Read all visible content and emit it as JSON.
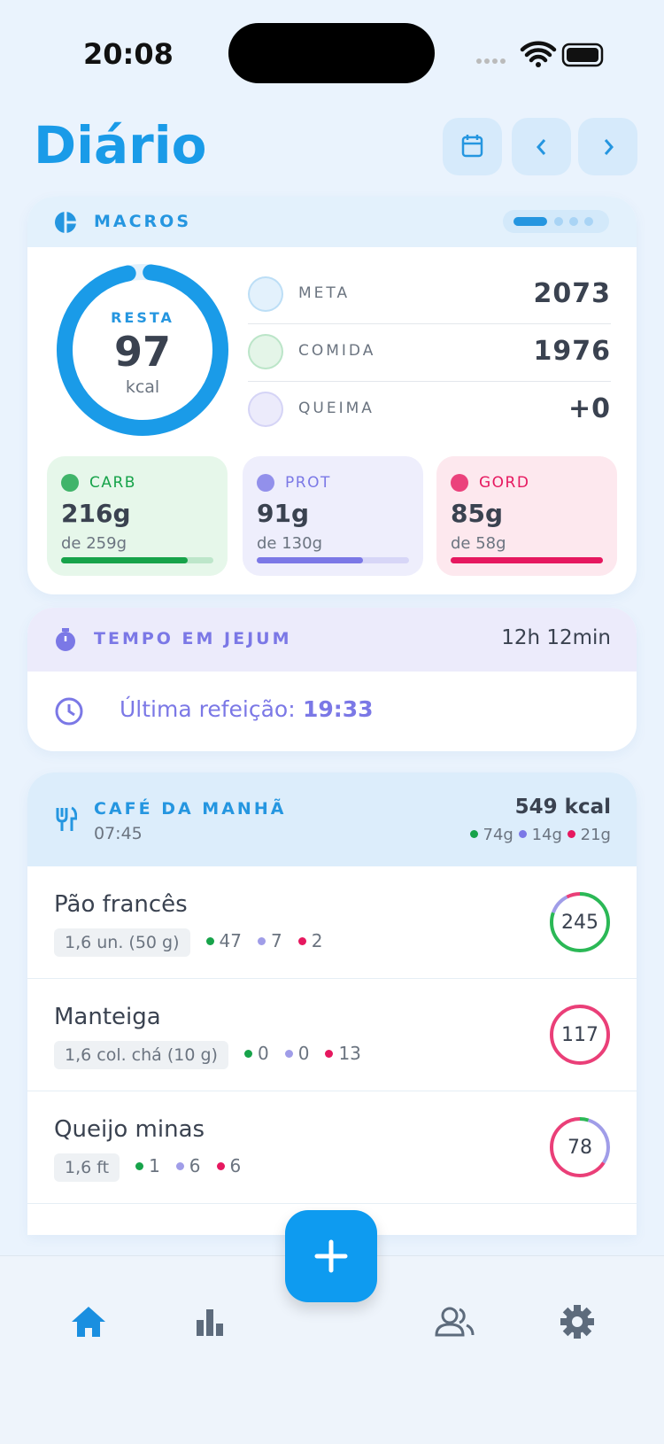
{
  "status_bar": {
    "time": "20:08"
  },
  "header": {
    "title": "Diário"
  },
  "macros": {
    "label": "MACROS",
    "remaining_label": "RESTA",
    "remaining": "97",
    "unit": "kcal",
    "rows": [
      {
        "label": "META",
        "value": "2073"
      },
      {
        "label": "COMIDA",
        "value": "1976"
      },
      {
        "label": "QUEIMA",
        "value": "+0"
      }
    ],
    "cards": [
      {
        "label": "CARB",
        "value": "216g",
        "goal": "de 259g",
        "color": "#17a34a"
      },
      {
        "label": "PROT",
        "value": "91g",
        "goal": "de 130g",
        "color": "#7b78e6"
      },
      {
        "label": "GORD",
        "value": "85g",
        "goal": "de 58g",
        "color": "#e6185f"
      }
    ]
  },
  "fasting": {
    "label": "TEMPO EM JEJUM",
    "duration": "12h 12min",
    "last_meal_label": "Última refeição:",
    "last_meal_time": "19:33"
  },
  "meal": {
    "name": "CAFÉ DA MANHÃ",
    "time": "07:45",
    "kcal": "549 kcal",
    "carb": "74g",
    "prot": "14g",
    "fat": "21g",
    "items": [
      {
        "name": "Pão francês",
        "portion": "1,6 un. (50 g)",
        "carb": "47",
        "prot": "7",
        "fat": "2",
        "kcal": "245"
      },
      {
        "name": "Manteiga",
        "portion": "1,6 col. chá (10 g)",
        "carb": "0",
        "prot": "0",
        "fat": "13",
        "kcal": "117"
      },
      {
        "name": "Queijo minas",
        "portion": "1,6 ft",
        "carb": "1",
        "prot": "6",
        "fat": "6",
        "kcal": "78"
      }
    ]
  }
}
